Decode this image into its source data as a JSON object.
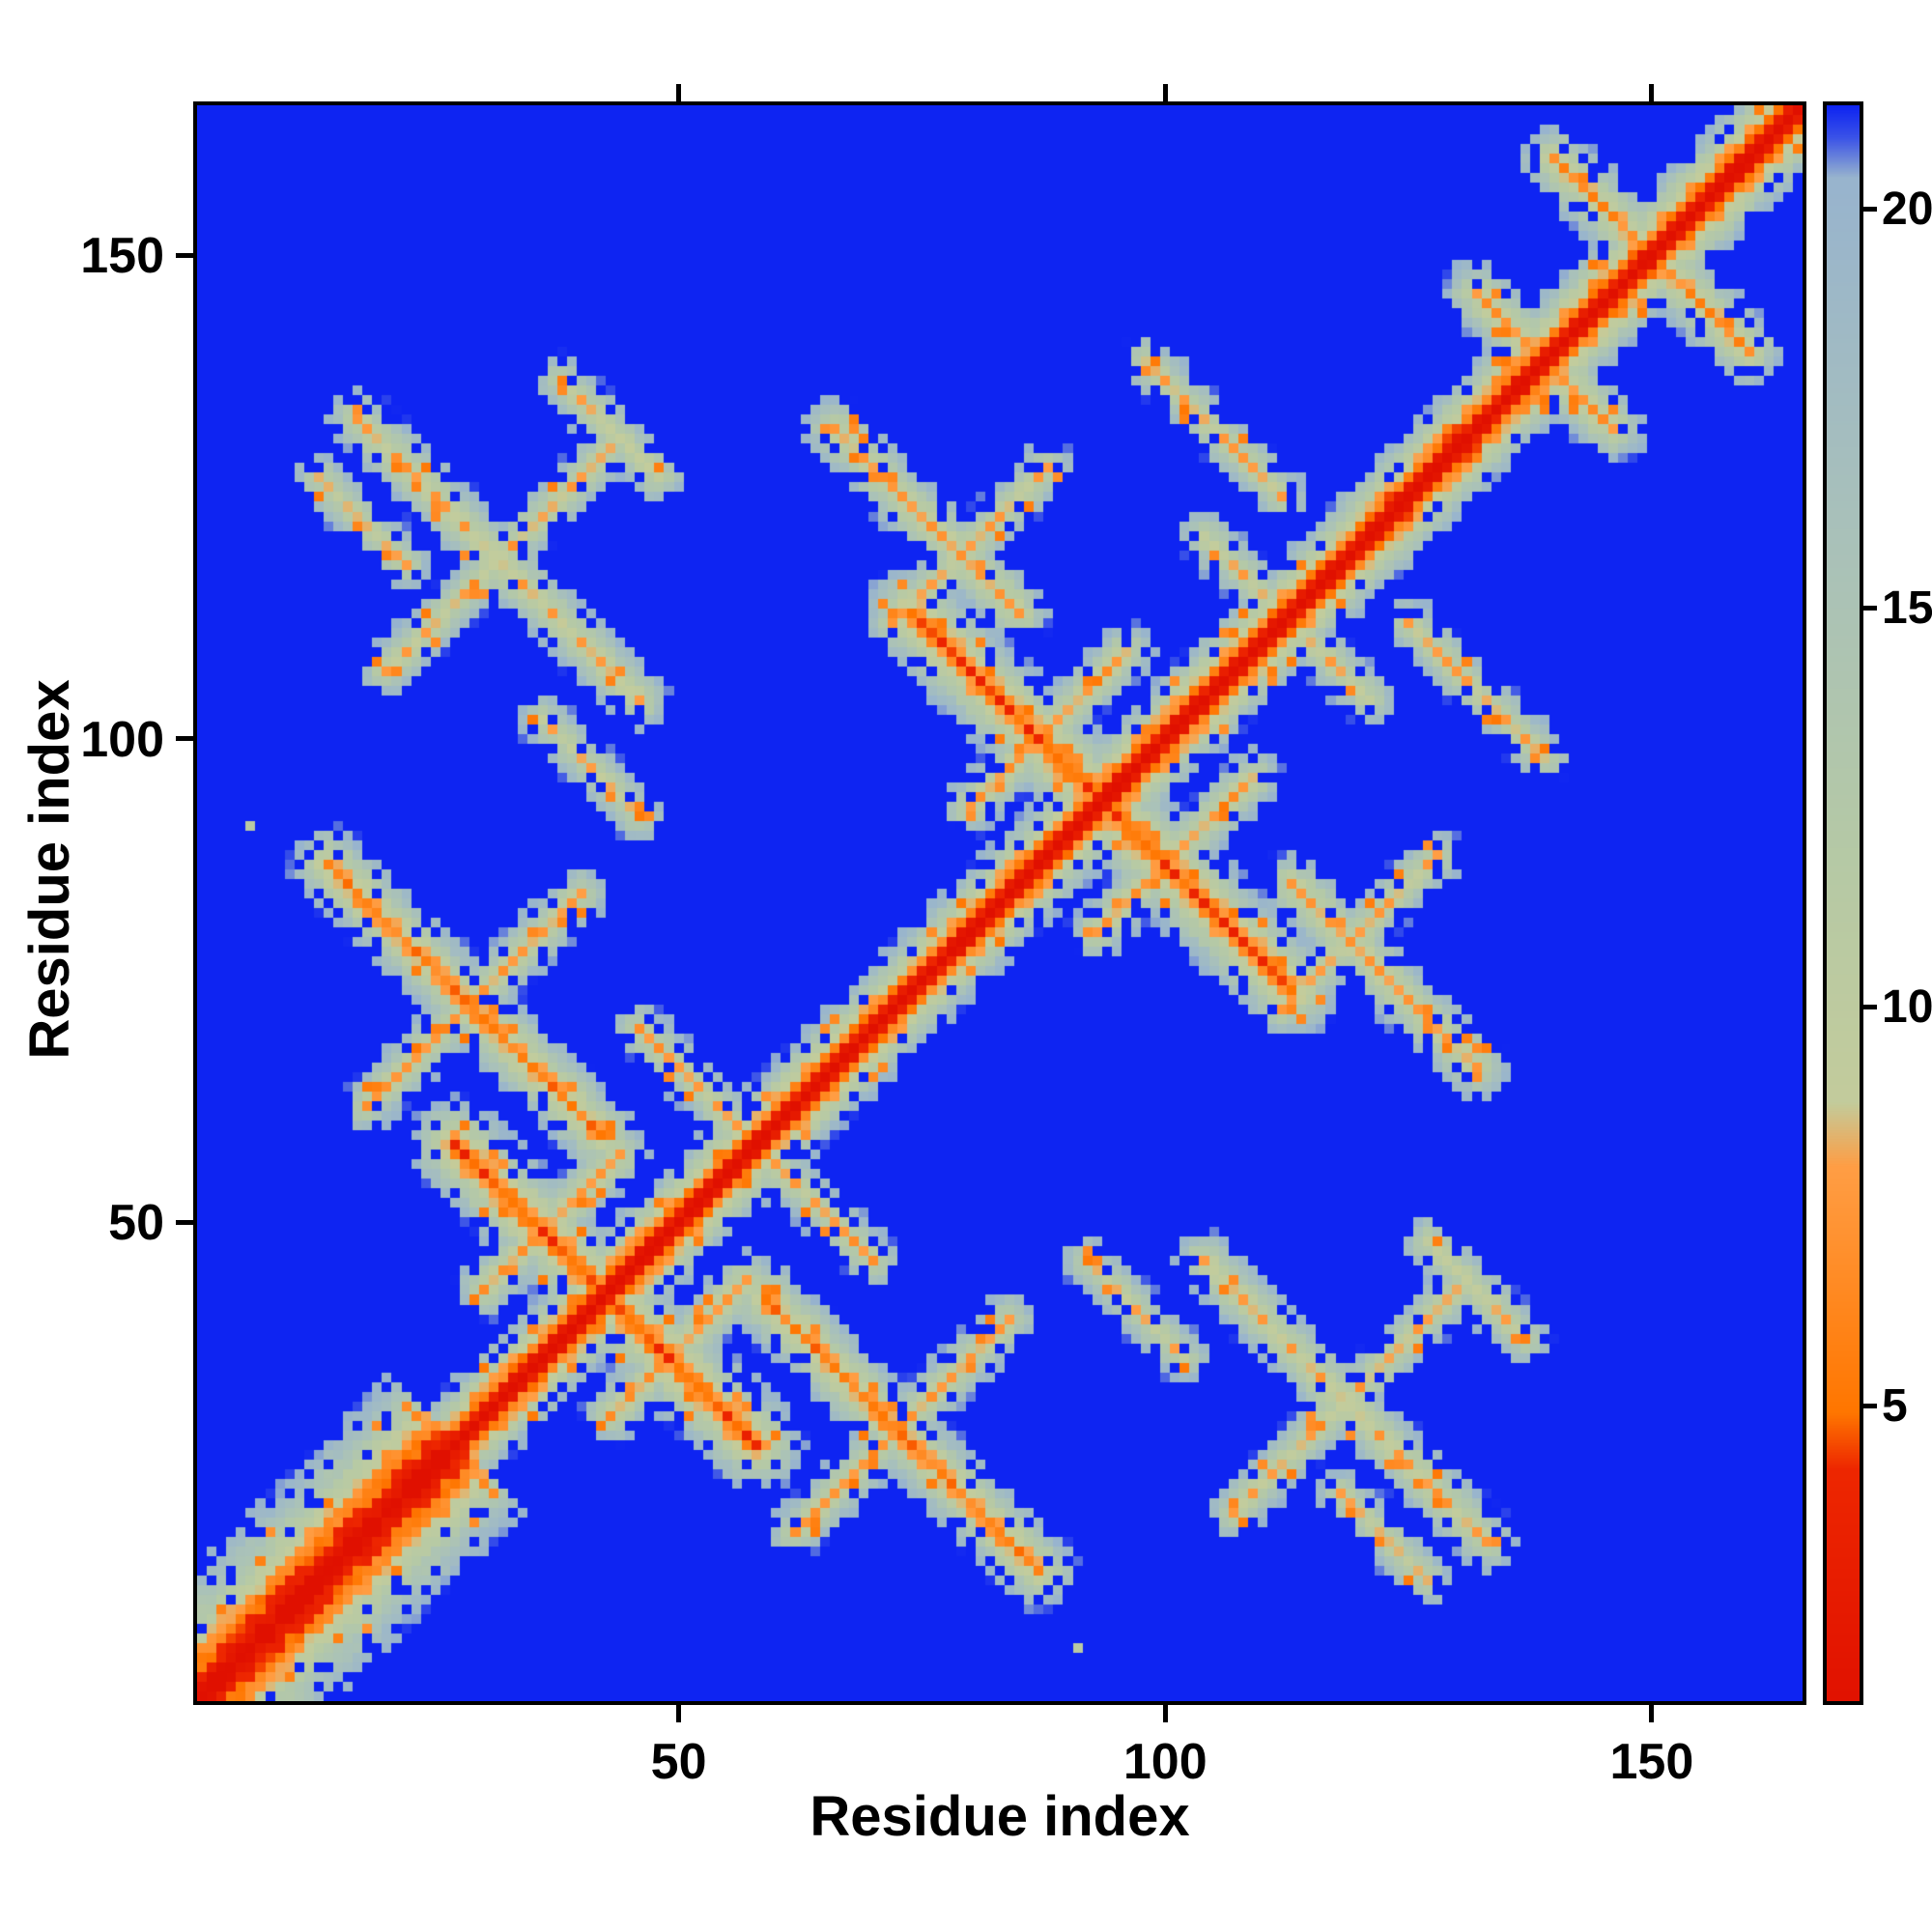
{
  "chart_data": {
    "type": "heatmap",
    "title": "",
    "xlabel": "Residue index",
    "ylabel": "Residue index",
    "n": 165,
    "x_range": [
      1,
      165
    ],
    "y_range": [
      1,
      165
    ],
    "xticks": [
      50,
      100,
      150
    ],
    "yticks": [
      50,
      100,
      150
    ],
    "colorbar_ticks": [
      5,
      10,
      15,
      20
    ],
    "vmin": 1.3,
    "vmax": 21.3,
    "background_value": 25,
    "background_color": "#0e24f2",
    "diagonal_color": "#e81200",
    "contact_color": "#ff7f00",
    "halo_color": "#b5c9a6",
    "colormap_stops": [
      [
        1.0,
        "#e01000"
      ],
      [
        4.2,
        "#ee2700"
      ],
      [
        4.9,
        "#ff7600"
      ],
      [
        8.0,
        "#ff9e45"
      ],
      [
        8.8,
        "#c3cc9c"
      ],
      [
        12.0,
        "#b5c9a6"
      ],
      [
        16.0,
        "#a9c1ba"
      ],
      [
        20.4,
        "#98b4ce"
      ],
      [
        20.9,
        "#3b53e8"
      ],
      [
        21.3,
        "#0e24f2"
      ]
    ],
    "noise": {
      "amplitude": 2.4,
      "dropout_start": 9.5,
      "dropout_scale": 26,
      "spot_min": 8.5,
      "spot_max": 16,
      "spot_threshold": 0.91,
      "spot_value": 5
    },
    "features": [
      {
        "type": "diag",
        "slope": 3.0
      },
      {
        "type": "diagband",
        "lo": 1,
        "hi": 26,
        "slope": 1.5
      },
      {
        "type": "diagband",
        "lo": 122,
        "hi": 165,
        "slope": 2.8
      },
      {
        "type": "anti",
        "c": 85,
        "lo": 27,
        "hi": 58,
        "base": 4.3,
        "slope": 3.4
      },
      {
        "type": "anti",
        "c": 187,
        "lo": 74,
        "hi": 113,
        "base": 4.3,
        "slope": 3.4
      },
      {
        "type": "anti",
        "c": 150,
        "lo": 17,
        "hi": 46,
        "base": 8.0,
        "slope": 4.0
      },
      {
        "type": "para",
        "delta": 87,
        "lo": 20,
        "hi": 44,
        "base": 8.5,
        "slope": 4.5
      },
      {
        "type": "anti",
        "c": 140,
        "lo": 13,
        "hi": 22,
        "base": 9.0,
        "slope": 4.5
      },
      {
        "type": "anti",
        "c": 175,
        "lo": 38,
        "hi": 48,
        "base": 8.5,
        "slope": 4.5
      },
      {
        "type": "anti",
        "c": 138,
        "lo": 36,
        "hi": 46,
        "base": 9.0,
        "slope": 4.5
      },
      {
        "type": "anti",
        "c": 101,
        "lo": 14,
        "hi": 42,
        "base": 5.8,
        "slope": 3.8
      },
      {
        "type": "para",
        "delta": 44,
        "lo": 18,
        "hi": 40,
        "base": 8.0,
        "slope": 4.5
      },
      {
        "type": "anti",
        "c": 116,
        "lo": 46,
        "hi": 56,
        "base": 8.5,
        "slope": 4.5
      },
      {
        "type": "para",
        "delta": 13,
        "lo": 30,
        "hi": 44,
        "base": 7.5,
        "slope": 4.5
      },
      {
        "type": "anti",
        "c": 198,
        "lo": 66,
        "hi": 85,
        "base": 7.5,
        "slope": 4.0
      },
      {
        "type": "para",
        "delta": 40,
        "lo": 72,
        "hi": 88,
        "base": 8.5,
        "slope": 4.5
      },
      {
        "type": "para",
        "delta": 13,
        "lo": 80,
        "hi": 96,
        "base": 7.5,
        "slope": 4.5
      },
      {
        "type": "anti",
        "c": 225,
        "lo": 104,
        "hi": 120,
        "base": 8.5,
        "slope": 4.5
      },
      {
        "type": "anti",
        "c": 237,
        "lo": 98,
        "hi": 112,
        "base": 8.5,
        "slope": 4.5
      },
      {
        "type": "anti",
        "c": 278,
        "lo": 132,
        "hi": 146,
        "base": 7.0,
        "slope": 4.0
      },
      {
        "type": "anti",
        "c": 300,
        "lo": 140,
        "hi": 160,
        "base": 6.5,
        "slope": 4.0
      },
      {
        "type": "dot",
        "i": 6,
        "j": 91,
        "v": 12
      }
    ]
  }
}
